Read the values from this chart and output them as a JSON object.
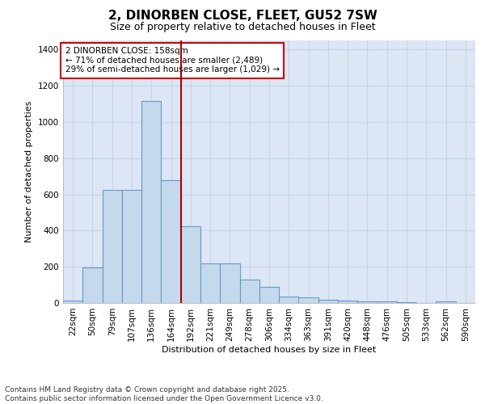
{
  "title_line1": "2, DINORBEN CLOSE, FLEET, GU52 7SW",
  "title_line2": "Size of property relative to detached houses in Fleet",
  "xlabel": "Distribution of detached houses by size in Fleet",
  "ylabel": "Number of detached properties",
  "categories": [
    "22sqm",
    "50sqm",
    "79sqm",
    "107sqm",
    "136sqm",
    "164sqm",
    "192sqm",
    "221sqm",
    "249sqm",
    "278sqm",
    "306sqm",
    "334sqm",
    "363sqm",
    "391sqm",
    "420sqm",
    "448sqm",
    "476sqm",
    "505sqm",
    "533sqm",
    "562sqm",
    "590sqm"
  ],
  "values": [
    15,
    195,
    625,
    625,
    1115,
    680,
    425,
    220,
    220,
    130,
    90,
    35,
    32,
    20,
    15,
    10,
    8,
    5,
    0,
    8,
    0
  ],
  "bar_color": "#c5d9ec",
  "bar_edge_color": "#6699cc",
  "grid_color": "#c8d4e8",
  "bg_color": "#dce6f4",
  "vline_color": "#aa0000",
  "vline_x_idx": 5,
  "annotation_text": "2 DINORBEN CLOSE: 158sqm\n← 71% of detached houses are smaller (2,489)\n29% of semi-detached houses are larger (1,029) →",
  "annotation_box_color": "#cc0000",
  "ylim": [
    0,
    1450
  ],
  "yticks": [
    0,
    200,
    400,
    600,
    800,
    1000,
    1200,
    1400
  ],
  "footer_line1": "Contains HM Land Registry data © Crown copyright and database right 2025.",
  "footer_line2": "Contains public sector information licensed under the Open Government Licence v3.0.",
  "title_fontsize": 11,
  "subtitle_fontsize": 9,
  "axis_label_fontsize": 8,
  "tick_fontsize": 7.5,
  "annotation_fontsize": 7.5,
  "footer_fontsize": 6.5
}
